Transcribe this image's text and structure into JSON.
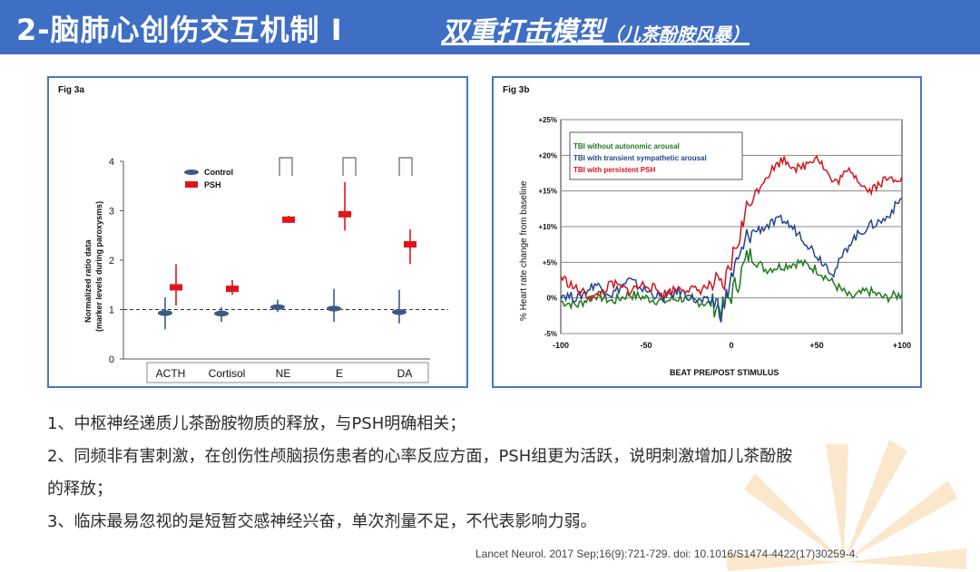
{
  "header": {
    "title_main": "2-脑肺心创伤交互机制 I ",
    "title_sub": "双重打击模型",
    "title_paren": "（儿茶酚胺风暴）",
    "bg_color": "#3f6fc4"
  },
  "fig3a": {
    "label": "Fig 3a",
    "ylabel_line1": "Normalized ratio data",
    "ylabel_line2": "(marker levels during paroxysms)",
    "legend": [
      "Control",
      "PSH"
    ],
    "categories": [
      "ACTH",
      "Cortisol",
      "NE",
      "E",
      "DA"
    ]
  },
  "fig3b": {
    "label": "Fig 3b",
    "ylabel": "% Heart rate change from baseline",
    "xlabel": "BEAT PRE/POST STIMULUS",
    "legend": [
      "TBI without autonomic arousal",
      "TBI with transient sympathetic arousal",
      "TBI with persistent PSH"
    ],
    "y_ticks": [
      "+25%",
      "+20%",
      "+15%",
      "+10%",
      "+5%",
      "0%",
      "-5%"
    ],
    "x_ticks": [
      "-100",
      "-50",
      "0",
      "+50",
      "+100"
    ]
  },
  "chart_data": [
    {
      "type": "scatter",
      "title": "",
      "ylim": [
        0,
        4
      ],
      "y_ticks": [
        "0",
        "1",
        "2",
        "3",
        "4"
      ],
      "reference_line": 1,
      "categories": [
        "ACTH",
        "Cortisol",
        "NE",
        "E",
        "DA"
      ],
      "series": [
        {
          "name": "Control",
          "values": [
            0.93,
            0.92,
            1.05,
            1.02,
            0.95
          ],
          "low": [
            0.6,
            0.75,
            0.95,
            0.75,
            0.72
          ],
          "high": [
            1.25,
            1.05,
            1.2,
            1.42,
            1.4
          ],
          "color": "#3a5a86"
        },
        {
          "name": "PSH",
          "values": [
            1.45,
            1.42,
            2.82,
            2.93,
            2.32
          ],
          "low": [
            1.08,
            1.3,
            2.75,
            2.6,
            1.92
          ],
          "high": [
            1.92,
            1.6,
            2.9,
            3.58,
            2.62
          ],
          "color": "#e0141c"
        }
      ]
    },
    {
      "type": "line",
      "title": "",
      "xlabel": "BEAT PRE/POST STIMULUS",
      "ylabel": "% Heart rate change from baseline",
      "xlim": [
        -100,
        100
      ],
      "ylim": [
        -5,
        25
      ],
      "x": [
        -100,
        -90,
        -80,
        -70,
        -60,
        -50,
        -40,
        -30,
        -20,
        -10,
        -5,
        0,
        5,
        10,
        20,
        30,
        40,
        50,
        60,
        70,
        80,
        90,
        100
      ],
      "series": [
        {
          "name": "TBI without autonomic arousal",
          "color": "#1f7a1f",
          "values": [
            -0.5,
            -1,
            0.5,
            -0.5,
            0.5,
            0,
            -0.5,
            0,
            -0.5,
            -1,
            -1.5,
            0.5,
            3,
            6,
            4,
            4.5,
            5,
            4,
            2,
            0,
            1,
            0,
            0.5
          ]
        },
        {
          "name": "TBI with transient sympathetic arousal",
          "color": "#23458f",
          "values": [
            0.5,
            0,
            2,
            0.5,
            2.5,
            1,
            0,
            1,
            -0.5,
            -0.5,
            -2,
            3,
            5.5,
            9,
            10,
            11,
            9,
            6,
            3.5,
            8,
            10,
            11,
            14
          ]
        },
        {
          "name": "TBI with persistent PSH",
          "color": "#d4141b",
          "values": [
            3,
            1,
            0,
            2,
            1,
            2,
            0.5,
            1.5,
            1,
            2,
            1,
            5,
            9,
            13,
            17,
            19.5,
            18,
            20,
            16,
            18,
            15,
            16.5,
            17
          ]
        }
      ]
    }
  ],
  "bullets": [
    "1、中枢神经递质儿茶酚胺物质的释放，与PSH明确相关；",
    "2、同频非有害刺激，在创伤性颅脑损伤患者的心率反应方面，PSH组更为活跃，说明刺激增加儿茶酚胺",
    "的释放；",
    "3、临床最易忽视的是短暂交感神经兴奋，单次剂量不足，不代表影响力弱。"
  ],
  "citation": "Lancet Neurol. 2017 Sep;16(9):721-729. doi: 10.1016/S1474-4422(17)30259-4."
}
